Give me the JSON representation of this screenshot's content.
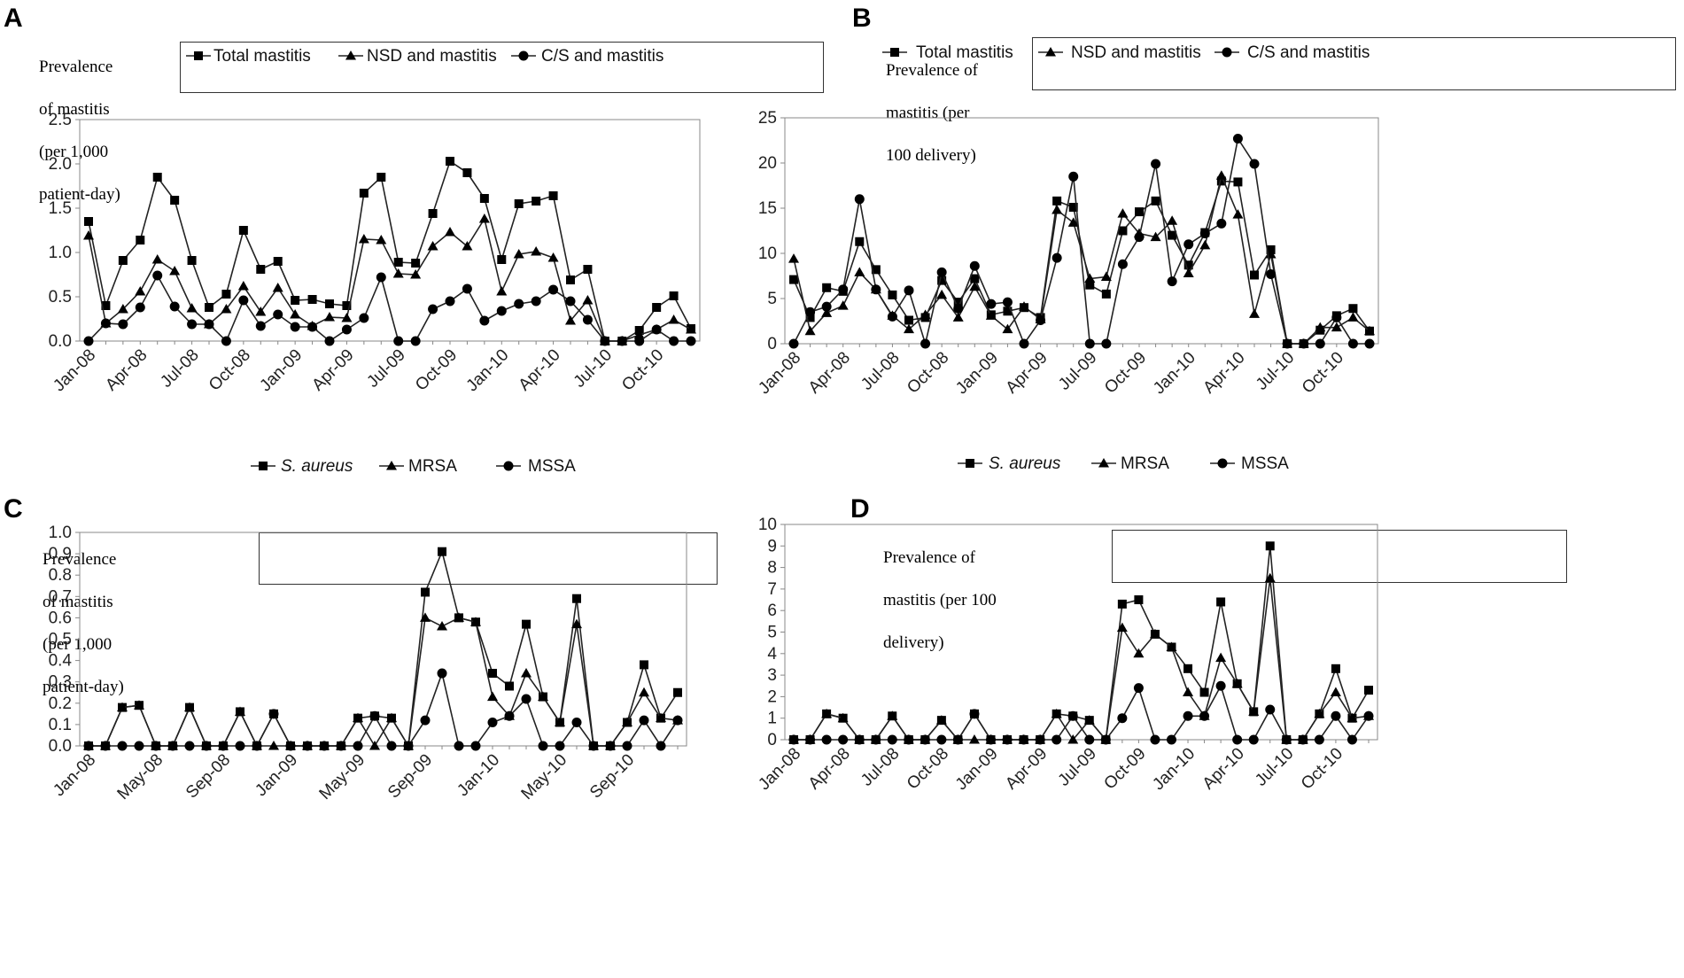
{
  "chart_data": [
    {
      "panel": "A",
      "type": "line",
      "ylabel": "Prevalence of mastitis (per 1,000 patient-day)",
      "ylabel_lines": [
        "Prevalence",
        "of mastitis",
        "(per 1,000",
        "patient-day)"
      ],
      "ylim": [
        0,
        2.5
      ],
      "yticks": [
        "0.0",
        "0.5",
        "1.0",
        "1.5",
        "2.0",
        "2.5"
      ],
      "ytick_values": [
        0,
        0.5,
        1.0,
        1.5,
        2.0,
        2.5
      ],
      "xtick_labels": [
        "Jan-08",
        "Apr-08",
        "Jul-08",
        "Oct-08",
        "Jan-09",
        "Apr-09",
        "Jul-09",
        "Oct-09",
        "Jan-10",
        "Apr-10",
        "Jul-10",
        "Oct-10"
      ],
      "xtick_step": 3,
      "n_points": 36,
      "legend": [
        {
          "name": "Total mastitis",
          "marker": "square",
          "italic": false
        },
        {
          "name": "NSD and mastitis",
          "marker": "triangle",
          "italic": false
        },
        {
          "name": "C/S and mastitis",
          "marker": "circle",
          "italic": false
        }
      ],
      "series": [
        {
          "name": "Total mastitis",
          "marker": "square",
          "values": [
            1.35,
            0.4,
            0.91,
            1.14,
            1.85,
            1.59,
            0.91,
            0.38,
            0.53,
            1.25,
            0.81,
            0.9,
            0.46,
            0.47,
            0.42,
            0.4,
            1.67,
            1.85,
            0.89,
            0.88,
            1.44,
            2.03,
            1.9,
            1.61,
            0.92,
            1.55,
            1.58,
            1.64,
            0.69,
            0.81,
            0.0,
            0.0,
            0.12,
            0.38,
            0.51,
            0.14
          ]
        },
        {
          "name": "NSD and mastitis",
          "marker": "triangle",
          "values": [
            1.19,
            0.2,
            0.36,
            0.56,
            0.92,
            0.79,
            0.37,
            0.19,
            0.36,
            0.62,
            0.33,
            0.6,
            0.3,
            0.17,
            0.27,
            0.26,
            1.15,
            1.14,
            0.76,
            0.75,
            1.07,
            1.23,
            1.07,
            1.38,
            0.56,
            0.98,
            1.01,
            0.94,
            0.23,
            0.46,
            0.0,
            0.0,
            0.07,
            0.13,
            0.24,
            0.13
          ]
        },
        {
          "name": "C/S and mastitis",
          "marker": "circle",
          "values": [
            0.0,
            0.2,
            0.19,
            0.38,
            0.74,
            0.39,
            0.19,
            0.19,
            0.0,
            0.46,
            0.17,
            0.3,
            0.16,
            0.16,
            0.0,
            0.13,
            0.26,
            0.72,
            0.0,
            0.0,
            0.36,
            0.45,
            0.59,
            0.23,
            0.34,
            0.42,
            0.45,
            0.58,
            0.45,
            0.24,
            0.0,
            0.0,
            0.0,
            0.13,
            0.0,
            0.0
          ]
        }
      ]
    },
    {
      "panel": "B",
      "type": "line",
      "ylabel": "Prevalence of mastitis (per 100 delivery)",
      "ylabel_lines": [
        "Prevalence of",
        "mastitis (per",
        "100 delivery)"
      ],
      "ylim": [
        0,
        25
      ],
      "yticks": [
        "0",
        "5",
        "10",
        "15",
        "20",
        "25"
      ],
      "ytick_values": [
        0,
        5,
        10,
        15,
        20,
        25
      ],
      "xtick_labels": [
        "Jan-08",
        "Apr-08",
        "Jul-08",
        "Oct-08",
        "Jan-09",
        "Apr-09",
        "Jul-09",
        "Oct-09",
        "Jan-10",
        "Apr-10",
        "Jul-10",
        "Oct-10"
      ],
      "xtick_step": 3,
      "n_points": 36,
      "legend": [
        {
          "name": "Total mastitis",
          "marker": "square",
          "italic": false
        },
        {
          "name": "NSD and mastitis",
          "marker": "triangle",
          "italic": false
        },
        {
          "name": "C/S and mastitis",
          "marker": "circle",
          "italic": false
        }
      ],
      "series": [
        {
          "name": "Total mastitis",
          "marker": "square",
          "values": [
            7.1,
            2.9,
            6.2,
            5.8,
            11.3,
            8.2,
            5.4,
            2.6,
            2.9,
            7.0,
            4.6,
            7.2,
            3.2,
            3.6,
            4.0,
            2.9,
            15.8,
            15.1,
            6.5,
            5.5,
            12.5,
            14.6,
            15.8,
            12.0,
            8.7,
            12.3,
            18.0,
            17.9,
            7.6,
            10.4,
            0.0,
            0.0,
            1.5,
            3.1,
            3.9,
            1.4
          ]
        },
        {
          "name": "NSD and mastitis",
          "marker": "triangle",
          "values": [
            9.4,
            1.4,
            3.4,
            4.2,
            7.9,
            6.0,
            3.1,
            1.6,
            3.2,
            5.4,
            2.9,
            6.3,
            3.1,
            1.6,
            4.1,
            2.7,
            14.8,
            13.4,
            7.2,
            7.4,
            14.4,
            12.2,
            11.8,
            13.6,
            7.8,
            10.9,
            18.6,
            14.3,
            3.3,
            9.9,
            0.0,
            0.0,
            1.8,
            1.8,
            2.9,
            1.4
          ]
        },
        {
          "name": "C/S and mastitis",
          "marker": "circle",
          "values": [
            0.0,
            3.5,
            4.1,
            6.0,
            16.0,
            6.0,
            3.0,
            5.9,
            0.0,
            7.9,
            3.9,
            8.6,
            4.4,
            4.6,
            0.0,
            2.6,
            9.5,
            18.5,
            0.0,
            0.0,
            8.8,
            11.8,
            19.9,
            6.9,
            11.0,
            12.2,
            13.3,
            22.7,
            19.9,
            7.7,
            0.0,
            0.0,
            0.0,
            2.9,
            0.0,
            0.0
          ]
        }
      ]
    },
    {
      "panel": "C",
      "type": "line",
      "ylabel": "Prevalence of mastitis (per 1,000 patient-day)",
      "ylabel_lines": [
        "Prevalence",
        "of mastitis",
        "(per 1,000",
        "patient-day)"
      ],
      "ylim": [
        0,
        1.0
      ],
      "yticks": [
        "0.0",
        "0.1",
        "0.2",
        "0.3",
        "0.4",
        "0.5",
        "0.6",
        "0.7",
        "0.8",
        "0.9",
        "1.0"
      ],
      "ytick_values": [
        0,
        0.1,
        0.2,
        0.3,
        0.4,
        0.5,
        0.6,
        0.7,
        0.8,
        0.9,
        1.0
      ],
      "xtick_labels": [
        "Jan-08",
        "May-08",
        "Sep-08",
        "Jan-09",
        "May-09",
        "Sep-09",
        "Jan-10",
        "May-10",
        "Sep-10"
      ],
      "xtick_step": 4,
      "n_points": 36,
      "legend": [
        {
          "name": "S. aureus",
          "marker": "square",
          "italic": true
        },
        {
          "name": "MRSA",
          "marker": "triangle",
          "italic": false
        },
        {
          "name": "MSSA",
          "marker": "circle",
          "italic": false
        }
      ],
      "series": [
        {
          "name": "S. aureus",
          "marker": "square",
          "values": [
            0.0,
            0.0,
            0.18,
            0.19,
            0.0,
            0.0,
            0.18,
            0.0,
            0.0,
            0.16,
            0.0,
            0.15,
            0.0,
            0.0,
            0.0,
            0.0,
            0.13,
            0.14,
            0.13,
            0.0,
            0.72,
            0.91,
            0.6,
            0.58,
            0.34,
            0.28,
            0.57,
            0.23,
            0.11,
            0.69,
            0.0,
            0.0,
            0.11,
            0.38,
            0.13,
            0.25
          ]
        },
        {
          "name": "MRSA",
          "marker": "triangle",
          "values": [
            0.0,
            0.0,
            0.18,
            0.19,
            0.0,
            0.0,
            0.18,
            0.0,
            0.0,
            0.16,
            0.0,
            0.0,
            0.0,
            0.0,
            0.0,
            0.0,
            0.13,
            0.0,
            0.13,
            0.0,
            0.6,
            0.56,
            0.6,
            0.58,
            0.23,
            0.14,
            0.34,
            0.23,
            0.11,
            0.57,
            0.0,
            0.0,
            0.11,
            0.25,
            0.13,
            0.12
          ]
        },
        {
          "name": "MSSA",
          "marker": "circle",
          "values": [
            0.0,
            0.0,
            0.0,
            0.0,
            0.0,
            0.0,
            0.0,
            0.0,
            0.0,
            0.0,
            0.0,
            0.15,
            0.0,
            0.0,
            0.0,
            0.0,
            0.0,
            0.14,
            0.0,
            0.0,
            0.12,
            0.34,
            0.0,
            0.0,
            0.11,
            0.14,
            0.22,
            0.0,
            0.0,
            0.11,
            0.0,
            0.0,
            0.0,
            0.12,
            0.0,
            0.12
          ]
        }
      ]
    },
    {
      "panel": "D",
      "type": "line",
      "ylabel": "Prevalence of mastitis (per 100 delivery)",
      "ylabel_lines": [
        "Prevalence of",
        "mastitis (per 100",
        "delivery)"
      ],
      "ylim": [
        0,
        10
      ],
      "yticks": [
        "0",
        "1",
        "2",
        "3",
        "4",
        "5",
        "6",
        "7",
        "8",
        "9",
        "10"
      ],
      "ytick_values": [
        0,
        1,
        2,
        3,
        4,
        5,
        6,
        7,
        8,
        9,
        10
      ],
      "xtick_labels": [
        "Jan-08",
        "Apr-08",
        "Jul-08",
        "Oct-08",
        "Jan-09",
        "Apr-09",
        "Jul-09",
        "Oct-09",
        "Jan-10",
        "Apr-10",
        "Jul-10",
        "Oct-10"
      ],
      "xtick_step": 3,
      "n_points": 36,
      "legend": [
        {
          "name": "S. aureus",
          "marker": "square",
          "italic": true
        },
        {
          "name": "MRSA",
          "marker": "triangle",
          "italic": false
        },
        {
          "name": "MSSA",
          "marker": "circle",
          "italic": false
        }
      ],
      "series": [
        {
          "name": "S. aureus",
          "marker": "square",
          "values": [
            0.0,
            0.0,
            1.2,
            1.0,
            0.0,
            0.0,
            1.1,
            0.0,
            0.0,
            0.9,
            0.0,
            1.2,
            0.0,
            0.0,
            0.0,
            0.0,
            1.2,
            1.1,
            0.9,
            0.0,
            6.3,
            6.5,
            4.9,
            4.3,
            3.3,
            2.2,
            6.4,
            2.6,
            1.3,
            9.0,
            0.0,
            0.0,
            1.2,
            3.3,
            1.0,
            2.3
          ]
        },
        {
          "name": "MRSA",
          "marker": "triangle",
          "values": [
            0.0,
            0.0,
            1.2,
            1.0,
            0.0,
            0.0,
            1.1,
            0.0,
            0.0,
            0.9,
            0.0,
            0.0,
            0.0,
            0.0,
            0.0,
            0.0,
            1.2,
            0.0,
            0.9,
            0.0,
            5.2,
            4.0,
            4.9,
            4.3,
            2.2,
            1.1,
            3.8,
            2.6,
            1.3,
            7.5,
            0.0,
            0.0,
            1.2,
            2.2,
            1.0,
            1.1
          ]
        },
        {
          "name": "MSSA",
          "marker": "circle",
          "values": [
            0.0,
            0.0,
            0.0,
            0.0,
            0.0,
            0.0,
            0.0,
            0.0,
            0.0,
            0.0,
            0.0,
            1.2,
            0.0,
            0.0,
            0.0,
            0.0,
            0.0,
            1.1,
            0.0,
            0.0,
            1.0,
            2.4,
            0.0,
            0.0,
            1.1,
            1.1,
            2.5,
            0.0,
            0.0,
            1.4,
            0.0,
            0.0,
            0.0,
            1.1,
            0.0,
            1.1
          ]
        }
      ]
    }
  ]
}
